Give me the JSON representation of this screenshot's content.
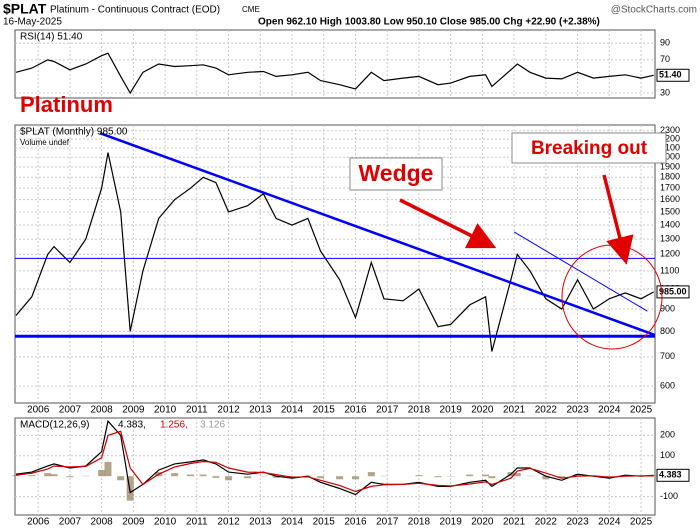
{
  "header": {
    "symbol": "$PLAT",
    "name": "Platinum - Continuous Contract (EOD)",
    "exchange": "CME",
    "date": "16-May-2025",
    "quote": "Open 962.10 High 1003.80 Low 950.10 Close 985.00 Chg +22.90 (+2.38%)",
    "source": "@StockCharts.com"
  },
  "chart_data": [
    {
      "type": "line",
      "legend": "RSI(14) 51.40",
      "color": "#000000",
      "x": [
        2005.3,
        2005.8,
        2006.3,
        2006.5,
        2007.0,
        2007.5,
        2008.0,
        2008.2,
        2008.6,
        2008.9,
        2009.3,
        2009.8,
        2010.3,
        2010.8,
        2011.2,
        2011.6,
        2012.0,
        2012.6,
        2013.1,
        2013.5,
        2014.0,
        2014.5,
        2014.9,
        2015.5,
        2016.0,
        2016.5,
        2016.9,
        2017.5,
        2018.0,
        2018.6,
        2019.0,
        2019.6,
        2020.1,
        2020.3,
        2020.9,
        2021.1,
        2021.5,
        2022.0,
        2022.5,
        2023.0,
        2023.5,
        2024.0,
        2024.5,
        2025.0,
        2025.4
      ],
      "values": [
        55,
        60,
        70,
        68,
        58,
        65,
        75,
        78,
        50,
        30,
        55,
        65,
        62,
        63,
        64,
        60,
        52,
        55,
        56,
        50,
        52,
        55,
        45,
        40,
        35,
        55,
        45,
        48,
        50,
        40,
        42,
        50,
        52,
        38,
        58,
        65,
        55,
        48,
        47,
        55,
        48,
        50,
        52,
        48,
        51.4
      ],
      "last_label": "51.40",
      "xlim": [
        2005.27,
        2025.44
      ],
      "xticks": [
        2006,
        2007,
        2008,
        2009,
        2010,
        2011,
        2012,
        2013,
        2014,
        2015,
        2016,
        2017,
        2018,
        2019,
        2020,
        2021,
        2022,
        2023,
        2024,
        2025
      ],
      "xtick_labels": false,
      "ylim": [
        24,
        106
      ],
      "yticks": [
        30,
        70,
        90
      ],
      "log_scale": false,
      "grid": true
    },
    {
      "type": "line",
      "title": "Platinum",
      "legend": "$PLAT (Monthly) 985.00",
      "sublegend": "Volume undef",
      "color": "#000000",
      "annotations": [
        "Wedge",
        "Breaking out"
      ],
      "x": [
        2005.3,
        2005.8,
        2006.3,
        2006.5,
        2007.0,
        2007.5,
        2008.0,
        2008.2,
        2008.6,
        2008.9,
        2009.3,
        2009.8,
        2010.3,
        2010.8,
        2011.2,
        2011.6,
        2012.0,
        2012.6,
        2013.1,
        2013.5,
        2014.0,
        2014.5,
        2014.9,
        2015.5,
        2016.0,
        2016.5,
        2016.9,
        2017.5,
        2018.0,
        2018.6,
        2019.0,
        2019.6,
        2020.1,
        2020.3,
        2020.9,
        2021.1,
        2021.5,
        2022.0,
        2022.5,
        2023.0,
        2023.5,
        2024.0,
        2024.5,
        2025.0,
        2025.4
      ],
      "values": [
        870,
        960,
        1200,
        1250,
        1150,
        1300,
        1700,
        2050,
        1500,
        800,
        1100,
        1450,
        1600,
        1700,
        1800,
        1750,
        1500,
        1550,
        1650,
        1450,
        1400,
        1450,
        1220,
        1050,
        860,
        1150,
        950,
        940,
        1000,
        820,
        830,
        920,
        960,
        720,
        1050,
        1200,
        1100,
        950,
        900,
        1050,
        900,
        950,
        980,
        950,
        985
      ],
      "last_label": "985.00",
      "trendlines": [
        {
          "color": "#0000ff",
          "width": 2.5,
          "x": [
            2007.95,
            2025.44
          ],
          "values": [
            2270,
            785
          ]
        },
        {
          "color": "#0000ff",
          "width": 3,
          "x": [
            2005.27,
            2025.44
          ],
          "values": [
            780,
            780
          ]
        },
        {
          "color": "#0000ff",
          "width": 1,
          "x": [
            2005.27,
            2025.44
          ],
          "values": [
            1175,
            1175
          ]
        },
        {
          "color": "#0000ff",
          "width": 1,
          "x": [
            2021.0,
            2025.2
          ],
          "values": [
            1350,
            890
          ]
        }
      ],
      "xlim": [
        2005.27,
        2025.44
      ],
      "xticks": [
        2006,
        2007,
        2008,
        2009,
        2010,
        2011,
        2012,
        2013,
        2014,
        2015,
        2016,
        2017,
        2018,
        2019,
        2020,
        2021,
        2022,
        2023,
        2024,
        2025
      ],
      "xtick_labels": true,
      "ylim": [
        549,
        2370
      ],
      "yticks": [
        600,
        700,
        800,
        900,
        1000,
        1100,
        1200,
        1300,
        1400,
        1500,
        1600,
        1700,
        1800,
        1900,
        2000,
        2100,
        2200,
        2300
      ],
      "log_scale": true,
      "grid": true
    },
    {
      "type": "line",
      "legend_parts": [
        "MACD(12,26,9)",
        "4.383,",
        "1.256,",
        "3.126"
      ],
      "x": [
        2005.3,
        2005.8,
        2006.3,
        2006.5,
        2007.0,
        2007.5,
        2008.0,
        2008.2,
        2008.6,
        2008.9,
        2009.3,
        2009.8,
        2010.3,
        2010.8,
        2011.2,
        2011.6,
        2012.0,
        2012.6,
        2013.1,
        2013.5,
        2014.0,
        2014.5,
        2014.9,
        2015.5,
        2016.0,
        2016.5,
        2016.9,
        2017.5,
        2018.0,
        2018.6,
        2019.0,
        2019.6,
        2020.1,
        2020.3,
        2020.9,
        2021.1,
        2021.5,
        2022.0,
        2022.5,
        2023.0,
        2023.5,
        2024.0,
        2024.5,
        2025.0,
        2025.4
      ],
      "series": [
        {
          "style": "bar",
          "color": "#a08c6a",
          "values": [
            5,
            5,
            15,
            10,
            -5,
            2,
            30,
            70,
            -20,
            -120,
            0,
            20,
            15,
            8,
            8,
            -8,
            -20,
            -10,
            2,
            -8,
            -5,
            3,
            -10,
            -15,
            -15,
            20,
            2,
            0,
            5,
            -5,
            -2,
            8,
            8,
            -10,
            20,
            15,
            2,
            -15,
            -10,
            10,
            -2,
            -5,
            5,
            -2,
            3.126
          ]
        },
        {
          "style": "line",
          "color": "#000000",
          "values": [
            10,
            20,
            50,
            60,
            40,
            50,
            120,
            270,
            200,
            -80,
            -40,
            30,
            60,
            70,
            80,
            60,
            20,
            10,
            20,
            0,
            -10,
            0,
            -30,
            -60,
            -90,
            -30,
            -40,
            -40,
            -30,
            -50,
            -50,
            -30,
            -20,
            -50,
            10,
            40,
            40,
            0,
            -20,
            10,
            0,
            -10,
            5,
            0,
            4.383
          ]
        },
        {
          "style": "line",
          "color": "#cc0000",
          "values": [
            5,
            15,
            35,
            50,
            45,
            48,
            90,
            200,
            220,
            40,
            -40,
            10,
            45,
            62,
            72,
            68,
            40,
            20,
            18,
            8,
            -5,
            -3,
            -20,
            -45,
            -75,
            -50,
            -42,
            -40,
            -35,
            -45,
            -48,
            -38,
            -28,
            -40,
            -10,
            25,
            38,
            15,
            -10,
            0,
            2,
            -5,
            0,
            2,
            1.256
          ]
        }
      ],
      "last_label": "4.383",
      "xlim": [
        2005.27,
        2025.44
      ],
      "xticks": [
        2006,
        2007,
        2008,
        2009,
        2010,
        2011,
        2012,
        2013,
        2014,
        2015,
        2016,
        2017,
        2018,
        2019,
        2020,
        2021,
        2022,
        2023,
        2024,
        2025
      ],
      "xtick_labels": true,
      "ylim": [
        -190,
        285
      ],
      "yticks": [
        -100,
        100,
        200
      ],
      "log_scale": false,
      "grid": true
    }
  ]
}
